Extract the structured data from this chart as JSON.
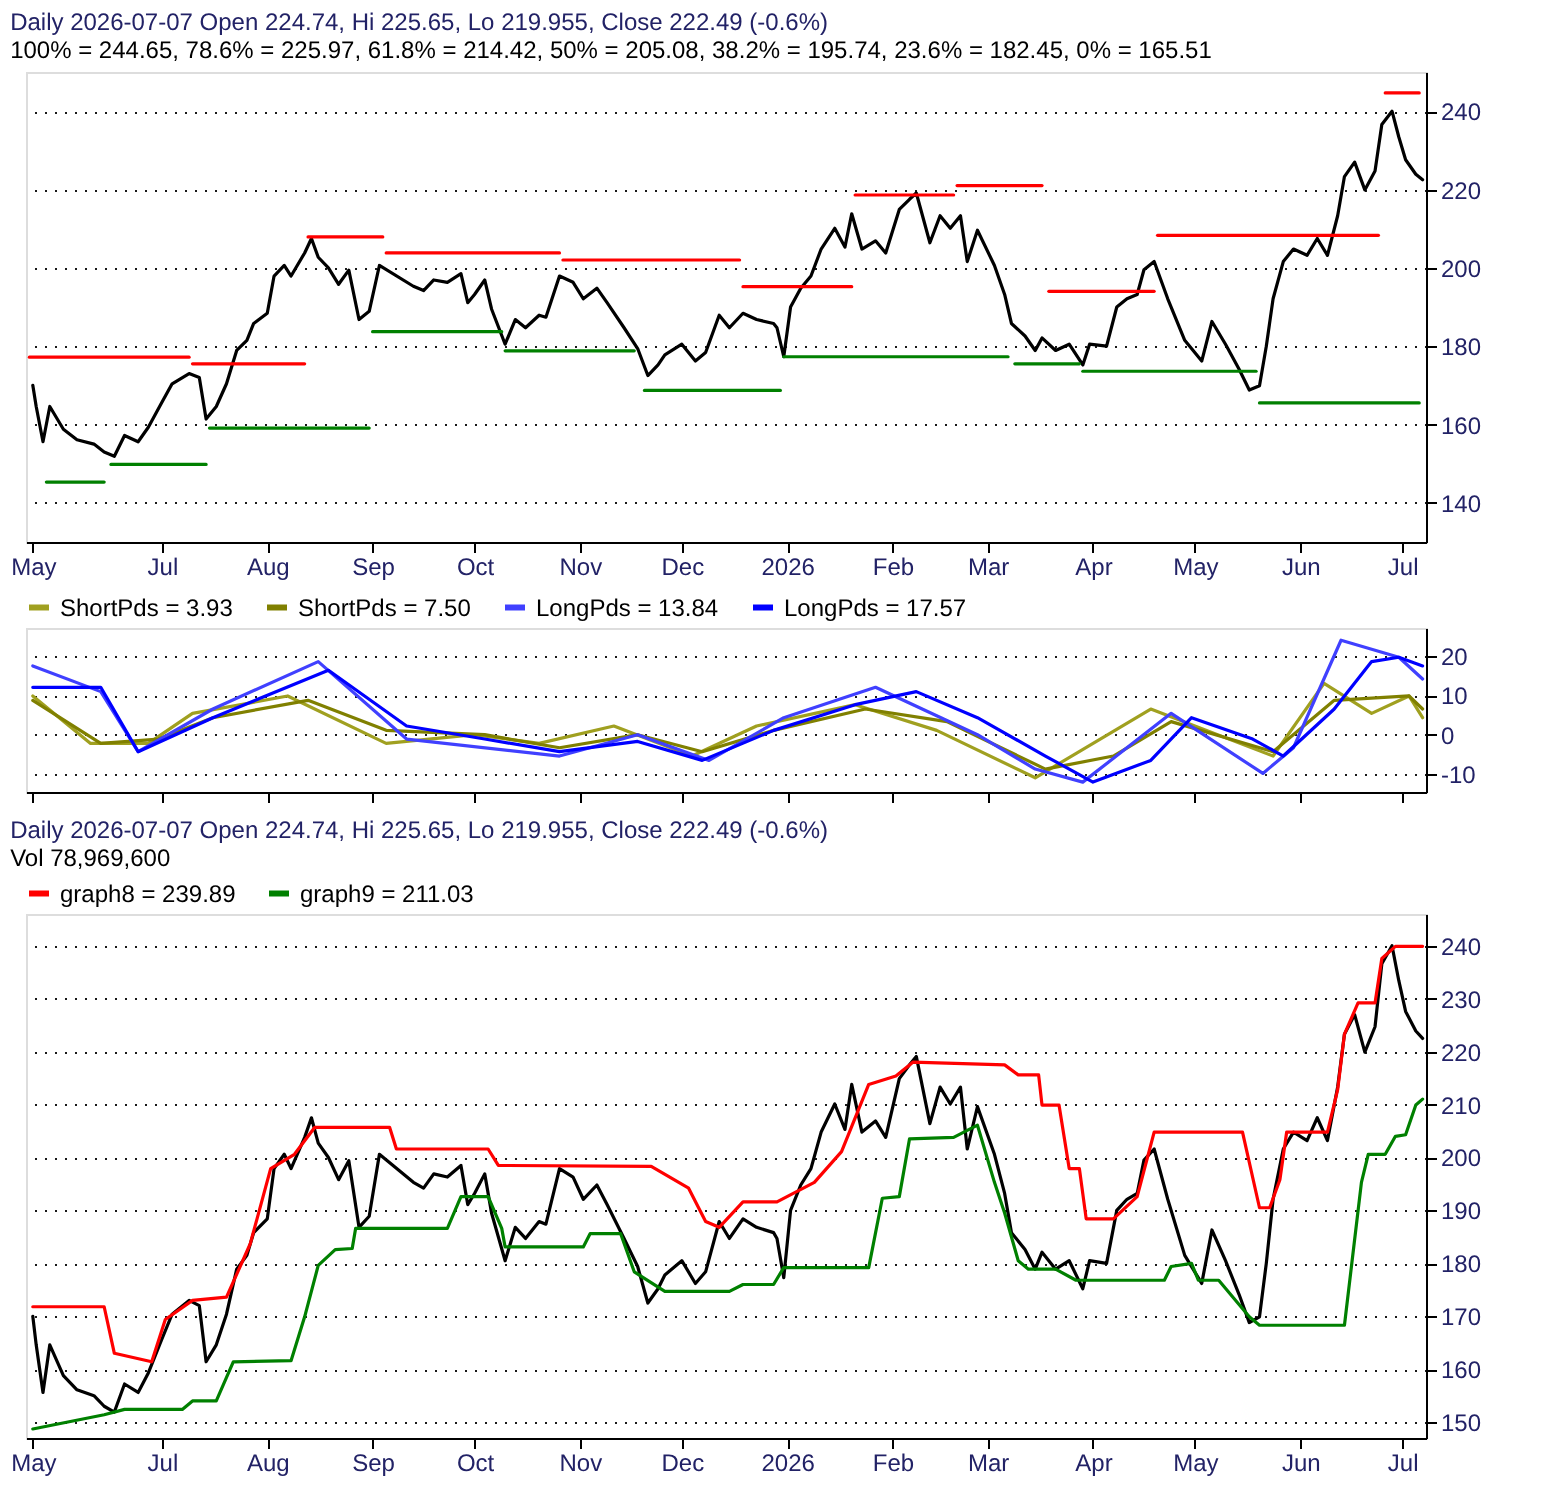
{
  "chart_data": [
    {
      "type": "line",
      "title": "Daily 2026-07-07 Open 224.74, Hi 225.65, Lo 219.955, Close 222.49 (-0.6%)",
      "subtitle": "100% = 244.65, 78.6% = 225.97, 61.8% = 214.42, 50% = 205.08, 38.2% = 195.74, 23.6% = 182.45, 0% = 165.51",
      "xlim": [
        "2025-05-22",
        "2026-07-08"
      ],
      "xticks": [
        {
          "value": "2025-05-24",
          "label": "May"
        },
        {
          "value": "2025-07-01",
          "label": "Jul"
        },
        {
          "value": "2025-08-01",
          "label": "Aug"
        },
        {
          "value": "2025-09-01",
          "label": "Sep"
        },
        {
          "value": "2025-10-01",
          "label": "Oct"
        },
        {
          "value": "2025-11-01",
          "label": "Nov"
        },
        {
          "value": "2025-12-01",
          "label": "Dec"
        },
        {
          "value": "2026-01-01",
          "label": "2026"
        },
        {
          "value": "2026-02-01",
          "label": "Feb"
        },
        {
          "value": "2026-03-01",
          "label": "Mar"
        },
        {
          "value": "2026-04-01",
          "label": "Apr"
        },
        {
          "value": "2026-05-01",
          "label": "May"
        },
        {
          "value": "2026-06-01",
          "label": "Jun"
        },
        {
          "value": "2026-07-01",
          "label": "Jul"
        }
      ],
      "ylim": [
        130,
        250
      ],
      "yticks": [
        140,
        160,
        180,
        200,
        220,
        240
      ],
      "grid": "y",
      "legend": false,
      "x": [
        "2025-05-24",
        "2025-05-25",
        "2025-05-27",
        "2025-05-29",
        "2025-06-02",
        "2025-06-06",
        "2025-06-11",
        "2025-06-14",
        "2025-06-17",
        "2025-06-20",
        "2025-06-24",
        "2025-06-27",
        "2025-07-01",
        "2025-07-04",
        "2025-07-09",
        "2025-07-12",
        "2025-07-14",
        "2025-07-17",
        "2025-07-20",
        "2025-07-23",
        "2025-07-26",
        "2025-07-28",
        "2025-08-01",
        "2025-08-03",
        "2025-08-06",
        "2025-08-08",
        "2025-08-12",
        "2025-08-14",
        "2025-08-16",
        "2025-08-19",
        "2025-08-22",
        "2025-08-25",
        "2025-08-28",
        "2025-08-31",
        "2025-09-03",
        "2025-09-13",
        "2025-09-16",
        "2025-09-19",
        "2025-09-23",
        "2025-09-27",
        "2025-09-29",
        "2025-10-01",
        "2025-10-04",
        "2025-10-06",
        "2025-10-10",
        "2025-10-13",
        "2025-10-16",
        "2025-10-20",
        "2025-10-22",
        "2025-10-26",
        "2025-10-30",
        "2025-11-02",
        "2025-11-06",
        "2025-11-09",
        "2025-11-14",
        "2025-11-18",
        "2025-11-21",
        "2025-11-24",
        "2025-11-26",
        "2025-12-01",
        "2025-12-05",
        "2025-12-08",
        "2025-12-12",
        "2025-12-15",
        "2025-12-19",
        "2025-12-23",
        "2025-12-28",
        "2025-12-29",
        "2025-12-31",
        "2026-01-02",
        "2026-01-05",
        "2026-01-08",
        "2026-01-11",
        "2026-01-15",
        "2026-01-18",
        "2026-01-20",
        "2026-01-23",
        "2026-01-27",
        "2026-01-30",
        "2026-02-03",
        "2026-02-06",
        "2026-02-08",
        "2026-02-12",
        "2026-02-15",
        "2026-02-18",
        "2026-02-21",
        "2026-02-23",
        "2026-02-26",
        "2026-03-03",
        "2026-03-06",
        "2026-03-08",
        "2026-03-12",
        "2026-03-15",
        "2026-03-17",
        "2026-03-21",
        "2026-03-25",
        "2026-03-29",
        "2026-03-31",
        "2026-04-05",
        "2026-04-08",
        "2026-04-11",
        "2026-04-14",
        "2026-04-16",
        "2026-04-19",
        "2026-04-23",
        "2026-04-28",
        "2026-05-03",
        "2026-05-06",
        "2026-05-10",
        "2026-05-14",
        "2026-05-17",
        "2026-05-20",
        "2026-05-22",
        "2026-05-24",
        "2026-05-27",
        "2026-05-30",
        "2026-06-03",
        "2026-06-06",
        "2026-06-09",
        "2026-06-12",
        "2026-06-14",
        "2026-06-17",
        "2026-06-20",
        "2026-06-23",
        "2026-06-25",
        "2026-06-28",
        "2026-06-30",
        "2026-07-02",
        "2026-07-05",
        "2026-07-07"
      ],
      "series": [
        {
          "color": "#000000",
          "values": [
            170.0,
            164.6,
            155.6,
            164.6,
            158.8,
            156.1,
            155.0,
            153.0,
            151.9,
            157.2,
            155.6,
            159.3,
            165.7,
            170.4,
            173.0,
            172.0,
            161.4,
            164.6,
            170.4,
            178.9,
            181.5,
            185.8,
            188.4,
            197.9,
            200.6,
            197.9,
            203.8,
            207.5,
            202.7,
            200.0,
            195.8,
            199.4,
            186.8,
            188.9,
            200.6,
            195.3,
            194.2,
            196.9,
            196.3,
            198.5,
            191.1,
            193.2,
            196.9,
            189.5,
            180.5,
            186.8,
            184.7,
            187.9,
            187.4,
            197.9,
            196.3,
            192.1,
            194.8,
            191.1,
            184.7,
            179.4,
            172.5,
            175.2,
            177.8,
            180.5,
            176.2,
            178.4,
            187.9,
            184.7,
            188.4,
            186.8,
            185.8,
            184.7,
            177.3,
            190.0,
            194.8,
            197.9,
            204.8,
            210.1,
            205.3,
            213.8,
            204.8,
            206.9,
            203.8,
            214.9,
            217.5,
            219.1,
            206.4,
            213.3,
            210.1,
            213.3,
            201.6,
            209.6,
            200.6,
            193.2,
            185.8,
            182.6,
            178.9,
            182.1,
            178.9,
            180.5,
            175.2,
            180.5,
            180.0,
            190.0,
            192.1,
            193.2,
            199.5,
            201.6,
            192.1,
            181.5,
            176.2,
            186.3,
            180.5,
            174.1,
            168.8,
            169.9,
            180.0,
            192.1,
            201.6,
            204.8,
            203.2,
            207.5,
            203.2,
            213.3,
            223.3,
            227.0,
            219.9,
            224.7,
            236.6,
            240.0,
            233.4,
            227.6,
            223.9,
            222.49
          ]
        },
        {
          "color": "#ff0000",
          "x": [
            "2025-05-23",
            "2025-07-09"
          ],
          "values": [
            177.2,
            177.2
          ]
        },
        {
          "color": "#ff0000",
          "x": [
            "2025-07-10",
            "2025-08-12"
          ],
          "values": [
            175.5,
            175.5
          ]
        },
        {
          "color": "#ff0000",
          "x": [
            "2025-08-13",
            "2025-09-04"
          ],
          "values": [
            207.9,
            207.9
          ]
        },
        {
          "color": "#ff0000",
          "x": [
            "2025-09-05",
            "2025-10-26"
          ],
          "values": [
            203.8,
            203.8
          ]
        },
        {
          "color": "#ff0000",
          "x": [
            "2025-10-27",
            "2025-12-18"
          ],
          "values": [
            202.0,
            202.0
          ]
        },
        {
          "color": "#ff0000",
          "x": [
            "2025-12-19",
            "2026-01-20"
          ],
          "values": [
            195.2,
            195.2
          ]
        },
        {
          "color": "#ff0000",
          "x": [
            "2026-01-21",
            "2026-02-19"
          ],
          "values": [
            218.6,
            218.6
          ]
        },
        {
          "color": "#ff0000",
          "x": [
            "2026-02-20",
            "2026-03-17"
          ],
          "values": [
            221.0,
            221.0
          ]
        },
        {
          "color": "#ff0000",
          "x": [
            "2026-03-19",
            "2026-04-19"
          ],
          "values": [
            194.0,
            194.0
          ]
        },
        {
          "color": "#ff0000",
          "x": [
            "2026-04-20",
            "2026-06-24"
          ],
          "values": [
            208.3,
            208.3
          ]
        },
        {
          "color": "#ff0000",
          "x": [
            "2026-06-26",
            "2026-07-06"
          ],
          "values": [
            244.65,
            244.65
          ]
        },
        {
          "color": "#008000",
          "x": [
            "2025-05-28",
            "2025-06-14"
          ],
          "values": [
            145.3,
            145.3
          ]
        },
        {
          "color": "#008000",
          "x": [
            "2025-06-16",
            "2025-07-14"
          ],
          "values": [
            149.8,
            149.8
          ]
        },
        {
          "color": "#008000",
          "x": [
            "2025-07-15",
            "2025-08-31"
          ],
          "values": [
            159.1,
            159.1
          ]
        },
        {
          "color": "#008000",
          "x": [
            "2025-09-01",
            "2025-10-09"
          ],
          "values": [
            183.7,
            183.7
          ]
        },
        {
          "color": "#008000",
          "x": [
            "2025-10-10",
            "2025-11-17"
          ],
          "values": [
            178.8,
            178.8
          ]
        },
        {
          "color": "#008000",
          "x": [
            "2025-11-20",
            "2025-12-30"
          ],
          "values": [
            168.7,
            168.7
          ]
        },
        {
          "color": "#008000",
          "x": [
            "2025-12-31",
            "2026-03-07"
          ],
          "values": [
            177.3,
            177.3
          ]
        },
        {
          "color": "#008000",
          "x": [
            "2026-03-09",
            "2026-03-28"
          ],
          "values": [
            175.5,
            175.5
          ]
        },
        {
          "color": "#008000",
          "x": [
            "2026-03-29",
            "2026-05-19"
          ],
          "values": [
            173.6,
            173.6
          ]
        },
        {
          "color": "#008000",
          "x": [
            "2026-05-20",
            "2026-07-06"
          ],
          "values": [
            165.51,
            165.51
          ]
        }
      ]
    },
    {
      "type": "line",
      "legend": "top",
      "tick_labels": "y",
      "xlim": [
        "2025-05-22",
        "2026-07-08"
      ],
      "xticks": [
        {
          "value": "2025-05-24",
          "label": null
        },
        {
          "value": "2025-07-01",
          "label": null
        },
        {
          "value": "2025-08-01",
          "label": null
        },
        {
          "value": "2025-09-01",
          "label": null
        },
        {
          "value": "2025-10-01",
          "label": null
        },
        {
          "value": "2025-11-01",
          "label": null
        },
        {
          "value": "2025-12-01",
          "label": null
        },
        {
          "value": "2026-01-01",
          "label": null
        },
        {
          "value": "2026-02-01",
          "label": null
        },
        {
          "value": "2026-03-01",
          "label": null
        },
        {
          "value": "2026-04-01",
          "label": null
        },
        {
          "value": "2026-05-01",
          "label": null
        },
        {
          "value": "2026-06-01",
          "label": null
        },
        {
          "value": "2026-07-01",
          "label": null
        }
      ],
      "ylim": [
        -14.5,
        27
      ],
      "yticks": [
        -10,
        0,
        10,
        20
      ],
      "grid": "y",
      "series": [
        {
          "name": "ShortPds = 3.93",
          "color": "#a0a020",
          "x": [
            "2025-05-24",
            "2025-06-10",
            "2025-06-27",
            "2025-07-10",
            "2025-08-07",
            "2025-09-05",
            "2025-10-01",
            "2025-10-20",
            "2025-11-11",
            "2025-12-04",
            "2025-12-23",
            "2026-01-21",
            "2026-02-14",
            "2026-03-15",
            "2026-04-18",
            "2026-05-24",
            "2026-06-08",
            "2026-06-22",
            "2026-07-03",
            "2026-07-07"
          ],
          "values": [
            9.8,
            -2.2,
            -2.2,
            5.4,
            9.8,
            -2.2,
            0,
            -2.2,
            2.2,
            -5.4,
            2.2,
            7.6,
            1.1,
            -10.9,
            6.5,
            -5.4,
            13,
            5.4,
            9.8,
            4.3
          ]
        },
        {
          "name": "ShortPds = 7.50",
          "color": "#808000",
          "x": [
            "2025-05-24",
            "2025-06-13",
            "2025-06-30",
            "2025-07-16",
            "2025-08-13",
            "2025-09-05",
            "2025-10-04",
            "2025-10-26",
            "2025-11-18",
            "2025-12-07",
            "2025-12-28",
            "2026-01-24",
            "2026-02-17",
            "2026-03-18",
            "2026-04-07",
            "2026-04-24",
            "2026-05-24",
            "2026-06-11",
            "2026-07-03",
            "2026-07-07"
          ],
          "values": [
            8.7,
            -2.2,
            -1.1,
            4.3,
            8.7,
            1.1,
            0,
            -3.3,
            0,
            -4.3,
            1.1,
            6.5,
            3.3,
            -8.7,
            -5.4,
            3.3,
            -4.3,
            8.7,
            9.8,
            6.5
          ]
        },
        {
          "name": "LongPds = 13.84",
          "color": "#4040ff",
          "x": [
            "2025-05-24",
            "2025-06-13",
            "2025-06-24",
            "2025-07-16",
            "2025-08-16",
            "2025-09-11",
            "2025-10-26",
            "2025-11-18",
            "2025-12-09",
            "2025-12-31",
            "2026-01-27",
            "2026-02-26",
            "2026-03-15",
            "2026-03-29",
            "2026-04-24",
            "2026-05-21",
            "2026-05-30",
            "2026-06-13",
            "2026-06-30",
            "2026-07-07"
          ],
          "values": [
            17.4,
            10.9,
            -4.3,
            6.5,
            18.5,
            -1.1,
            -5.4,
            0,
            -6.5,
            4.3,
            12,
            0,
            -8.7,
            -12,
            5.4,
            -9.8,
            -3.3,
            23.9,
            19.6,
            14.1
          ]
        },
        {
          "name": "LongPds = 17.57",
          "color": "#0000ff",
          "x": [
            "2025-05-24",
            "2025-06-13",
            "2025-06-24",
            "2025-07-16",
            "2025-08-19",
            "2025-09-11",
            "2025-10-04",
            "2025-10-26",
            "2025-11-18",
            "2025-12-07",
            "2025-12-28",
            "2026-01-21",
            "2026-02-08",
            "2026-02-26",
            "2026-03-18",
            "2026-04-01",
            "2026-04-18",
            "2026-04-30",
            "2026-05-18",
            "2026-05-27",
            "2026-06-11",
            "2026-06-22",
            "2026-06-30",
            "2026-07-07"
          ],
          "values": [
            12,
            12,
            -4.3,
            4.3,
            16.3,
            2.2,
            -1.1,
            -4.3,
            -1.7,
            -6.5,
            1.1,
            7.6,
            10.9,
            4.3,
            -5.4,
            -12,
            -6.5,
            4.3,
            -1.1,
            -5.4,
            6.5,
            18.5,
            19.6,
            17.4
          ]
        }
      ]
    },
    {
      "type": "line",
      "title": "Daily 2026-07-07 Open 224.74, Hi 225.65, Lo 219.955, Close 222.49 (-0.6%)",
      "subtitle": "Vol 78,969,600",
      "legend": "top",
      "xlim": [
        "2025-05-22",
        "2026-07-08"
      ],
      "xticks": [
        {
          "value": "2025-05-24",
          "label": "May"
        },
        {
          "value": "2025-07-01",
          "label": "Jul"
        },
        {
          "value": "2025-08-01",
          "label": "Aug"
        },
        {
          "value": "2025-09-01",
          "label": "Sep"
        },
        {
          "value": "2025-10-01",
          "label": "Oct"
        },
        {
          "value": "2025-11-01",
          "label": "Nov"
        },
        {
          "value": "2025-12-01",
          "label": "Dec"
        },
        {
          "value": "2026-01-01",
          "label": "2026"
        },
        {
          "value": "2026-02-01",
          "label": "Feb"
        },
        {
          "value": "2026-03-01",
          "label": "Mar"
        },
        {
          "value": "2026-04-01",
          "label": "Apr"
        },
        {
          "value": "2026-05-01",
          "label": "May"
        },
        {
          "value": "2026-06-01",
          "label": "Jun"
        },
        {
          "value": "2026-07-01",
          "label": "Jul"
        }
      ],
      "ylim": [
        147,
        246
      ],
      "yticks": [
        150,
        160,
        170,
        180,
        190,
        200,
        210,
        220,
        230,
        240
      ],
      "grid": "y",
      "x": [
        "2025-05-24",
        "2025-05-25",
        "2025-05-27",
        "2025-05-29",
        "2025-06-02",
        "2025-06-06",
        "2025-06-11",
        "2025-06-14",
        "2025-06-17",
        "2025-06-20",
        "2025-06-24",
        "2025-06-27",
        "2025-07-01",
        "2025-07-04",
        "2025-07-09",
        "2025-07-12",
        "2025-07-14",
        "2025-07-17",
        "2025-07-20",
        "2025-07-23",
        "2025-07-26",
        "2025-07-28",
        "2025-08-01",
        "2025-08-03",
        "2025-08-06",
        "2025-08-08",
        "2025-08-12",
        "2025-08-14",
        "2025-08-16",
        "2025-08-19",
        "2025-08-22",
        "2025-08-25",
        "2025-08-28",
        "2025-08-31",
        "2025-09-03",
        "2025-09-13",
        "2025-09-16",
        "2025-09-19",
        "2025-09-23",
        "2025-09-27",
        "2025-09-29",
        "2025-10-01",
        "2025-10-04",
        "2025-10-06",
        "2025-10-10",
        "2025-10-13",
        "2025-10-16",
        "2025-10-20",
        "2025-10-22",
        "2025-10-26",
        "2025-10-30",
        "2025-11-02",
        "2025-11-06",
        "2025-11-09",
        "2025-11-14",
        "2025-11-18",
        "2025-11-21",
        "2025-11-24",
        "2025-11-26",
        "2025-12-01",
        "2025-12-05",
        "2025-12-08",
        "2025-12-12",
        "2025-12-15",
        "2025-12-19",
        "2025-12-23",
        "2025-12-28",
        "2025-12-29",
        "2025-12-31",
        "2026-01-02",
        "2026-01-05",
        "2026-01-08",
        "2026-01-11",
        "2026-01-15",
        "2026-01-18",
        "2026-01-20",
        "2026-01-23",
        "2026-01-27",
        "2026-01-30",
        "2026-02-03",
        "2026-02-06",
        "2026-02-08",
        "2026-02-12",
        "2026-02-15",
        "2026-02-18",
        "2026-02-21",
        "2026-02-23",
        "2026-02-26",
        "2026-03-03",
        "2026-03-06",
        "2026-03-08",
        "2026-03-12",
        "2026-03-15",
        "2026-03-17",
        "2026-03-21",
        "2026-03-25",
        "2026-03-29",
        "2026-03-31",
        "2026-04-05",
        "2026-04-08",
        "2026-04-11",
        "2026-04-14",
        "2026-04-16",
        "2026-04-19",
        "2026-04-23",
        "2026-04-28",
        "2026-05-03",
        "2026-05-06",
        "2026-05-10",
        "2026-05-14",
        "2026-05-17",
        "2026-05-20",
        "2026-05-22",
        "2026-05-24",
        "2026-05-27",
        "2026-05-30",
        "2026-06-03",
        "2026-06-06",
        "2026-06-09",
        "2026-06-12",
        "2026-06-14",
        "2026-06-17",
        "2026-06-20",
        "2026-06-23",
        "2026-06-25",
        "2026-06-28",
        "2026-06-30",
        "2026-07-02",
        "2026-07-05",
        "2026-07-07"
      ],
      "series": [
        {
          "color": "#000000",
          "values": [
            170.0,
            164.6,
            155.6,
            164.6,
            158.8,
            156.1,
            155.0,
            153.0,
            151.9,
            157.2,
            155.6,
            159.3,
            165.7,
            170.4,
            173.0,
            172.0,
            161.4,
            164.6,
            170.4,
            178.9,
            181.5,
            185.8,
            188.4,
            197.9,
            200.6,
            197.9,
            203.8,
            207.5,
            202.7,
            200.0,
            195.8,
            199.4,
            186.8,
            188.9,
            200.6,
            195.3,
            194.2,
            196.9,
            196.3,
            198.5,
            191.1,
            193.2,
            196.9,
            189.5,
            180.5,
            186.8,
            184.7,
            187.9,
            187.4,
            197.9,
            196.3,
            192.1,
            194.8,
            191.1,
            184.7,
            179.4,
            172.5,
            175.2,
            177.8,
            180.5,
            176.2,
            178.4,
            187.9,
            184.7,
            188.4,
            186.8,
            185.8,
            184.7,
            177.3,
            190.0,
            194.8,
            197.9,
            204.8,
            210.1,
            205.3,
            213.8,
            204.8,
            206.9,
            203.8,
            214.9,
            217.5,
            219.1,
            206.4,
            213.3,
            210.1,
            213.3,
            201.6,
            209.6,
            200.6,
            193.2,
            185.8,
            182.6,
            178.9,
            182.1,
            178.9,
            180.5,
            175.2,
            180.5,
            180.0,
            190.0,
            192.1,
            193.2,
            199.5,
            201.6,
            192.1,
            181.5,
            176.2,
            186.3,
            180.5,
            174.1,
            168.8,
            169.9,
            180.0,
            192.1,
            201.6,
            204.8,
            203.2,
            207.5,
            203.2,
            213.3,
            223.3,
            227.0,
            219.9,
            224.7,
            236.6,
            240.0,
            233.4,
            227.6,
            223.9,
            222.49
          ]
        },
        {
          "name": "graph8 = 239.89",
          "color": "#ff0000",
          "x": [
            "2025-05-24",
            "2025-06-14",
            "2025-06-17",
            "2025-06-28",
            "2025-07-02",
            "2025-07-10",
            "2025-07-20",
            "2025-07-27",
            "2025-08-02",
            "2025-08-09",
            "2025-08-15",
            "2025-09-06",
            "2025-09-08",
            "2025-10-05",
            "2025-10-08",
            "2025-11-22",
            "2025-12-03",
            "2025-12-08",
            "2025-12-12",
            "2025-12-19",
            "2025-12-29",
            "2026-01-09",
            "2026-01-17",
            "2026-01-25",
            "2026-02-02",
            "2026-02-07",
            "2026-03-06",
            "2026-03-10",
            "2026-03-16",
            "2026-03-17",
            "2026-03-22",
            "2026-03-25",
            "2026-03-28",
            "2026-03-30",
            "2026-04-07",
            "2026-04-14",
            "2026-04-19",
            "2026-05-15",
            "2026-05-20",
            "2026-05-23",
            "2026-05-26",
            "2026-05-28",
            "2026-06-09",
            "2026-06-12",
            "2026-06-14",
            "2026-06-18",
            "2026-06-23",
            "2026-06-25",
            "2026-06-29",
            "2026-07-07"
          ],
          "values": [
            171.8,
            171.8,
            163.0,
            161.4,
            169.4,
            173.0,
            173.6,
            183.7,
            197.9,
            200.6,
            205.7,
            205.7,
            201.6,
            201.6,
            198.5,
            198.3,
            194.2,
            187.9,
            186.8,
            191.6,
            191.6,
            195.3,
            201.1,
            213.8,
            215.4,
            218.0,
            217.5,
            215.6,
            215.6,
            209.9,
            209.9,
            197.9,
            197.9,
            188.4,
            188.4,
            192.6,
            204.8,
            204.8,
            190.5,
            190.5,
            195.8,
            204.8,
            204.8,
            212.8,
            223.3,
            229.2,
            229.2,
            237.6,
            239.89,
            239.89
          ]
        },
        {
          "name": "graph9 = 211.03",
          "color": "#008000",
          "x": [
            "2025-05-24",
            "2025-06-14",
            "2025-06-20",
            "2025-07-07",
            "2025-07-10",
            "2025-07-17",
            "2025-07-22",
            "2025-08-08",
            "2025-08-12",
            "2025-08-16",
            "2025-08-21",
            "2025-08-26",
            "2025-08-27",
            "2025-09-23",
            "2025-09-27",
            "2025-10-05",
            "2025-10-09",
            "2025-10-10",
            "2025-11-02",
            "2025-11-04",
            "2025-11-13",
            "2025-11-17",
            "2025-11-26",
            "2025-12-15",
            "2025-12-19",
            "2025-12-28",
            "2025-12-31",
            "2026-01-25",
            "2026-01-29",
            "2026-02-03",
            "2026-02-06",
            "2026-02-19",
            "2026-02-26",
            "2026-03-03",
            "2026-03-06",
            "2026-03-10",
            "2026-03-13",
            "2026-03-21",
            "2026-03-27",
            "2026-04-22",
            "2026-04-24",
            "2026-04-30",
            "2026-05-02",
            "2026-05-08",
            "2026-05-17",
            "2026-05-20",
            "2026-06-14",
            "2026-06-19",
            "2026-06-21",
            "2026-06-26",
            "2026-06-29",
            "2026-07-02",
            "2026-07-05",
            "2026-07-07"
          ],
          "values": [
            148.7,
            151.4,
            152.4,
            152.4,
            154.0,
            154.0,
            161.4,
            161.6,
            169.9,
            179.6,
            182.6,
            182.8,
            186.6,
            186.6,
            192.6,
            192.6,
            186.6,
            183.1,
            183.1,
            185.6,
            185.6,
            178.4,
            174.7,
            174.7,
            176.0,
            176.0,
            179.2,
            179.2,
            192.3,
            192.6,
            203.5,
            203.8,
            206.1,
            195.3,
            189.5,
            180.5,
            178.9,
            178.9,
            176.8,
            176.8,
            179.4,
            180.0,
            176.8,
            176.8,
            169.9,
            168.3,
            168.3,
            195.3,
            200.6,
            200.6,
            204.0,
            204.3,
            209.9,
            211.03
          ]
        }
      ]
    }
  ]
}
